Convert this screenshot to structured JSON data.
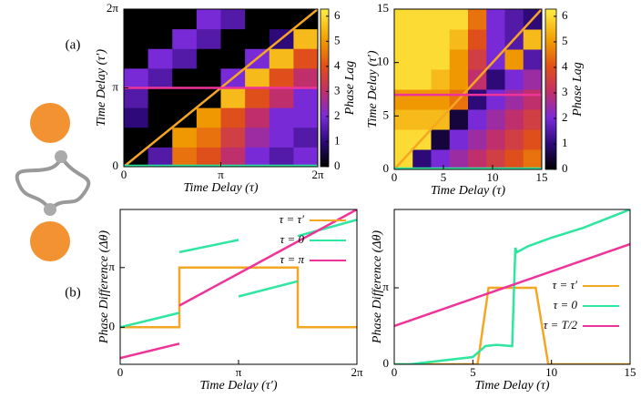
{
  "chart_data": [
    {
      "type": "heatmap",
      "panel_label": "(a)",
      "xlabel": "Time Delay (τ)",
      "ylabel": "Time Delay (τ′)",
      "xlim": [
        0,
        6.2832
      ],
      "ylim": [
        0,
        6.2832
      ],
      "xticks": [
        0,
        {
          "value": 3.1416,
          "label": "π"
        },
        {
          "value": 6.2832,
          "label": "2π"
        }
      ],
      "yticks": [
        0,
        {
          "value": 3.1416,
          "label": "π"
        },
        {
          "value": 6.2832,
          "label": "2π"
        }
      ],
      "z": [
        [
          0,
          1.5,
          4.5,
          4,
          3,
          2,
          1.5,
          2
        ],
        [
          0,
          0,
          5,
          4.5,
          3.5,
          2.5,
          2,
          1.5
        ],
        [
          1,
          0,
          0,
          5,
          4,
          3,
          2,
          2
        ],
        [
          1.5,
          0,
          0,
          0,
          5.5,
          4,
          3,
          2
        ],
        [
          2,
          1.5,
          0,
          0,
          2,
          5.5,
          4,
          3
        ],
        [
          0,
          2,
          1.5,
          0,
          0,
          2,
          5.5,
          4
        ],
        [
          0,
          0,
          2,
          1.5,
          0,
          0,
          1,
          5.5
        ],
        [
          0,
          0,
          0,
          2,
          1.5,
          0,
          0,
          0
        ]
      ],
      "colorbar": {
        "label": "Phase Lag",
        "lim": [
          0,
          6.2832
        ],
        "ticks": [
          0,
          1,
          2,
          3,
          4,
          5,
          6
        ]
      }
    },
    {
      "type": "heatmap",
      "xlabel": "Time Delay (τ)",
      "ylabel": "Time Delay (τ′)",
      "xlim": [
        0,
        15
      ],
      "ylim": [
        0,
        15
      ],
      "xticks": [
        0,
        5,
        10,
        15
      ],
      "yticks": [
        0,
        5,
        10,
        15
      ],
      "z": [
        [
          6,
          1,
          2,
          2.5,
          3,
          3.5,
          4,
          4.5
        ],
        [
          6,
          6,
          0.5,
          2,
          2.5,
          3,
          3.5,
          4
        ],
        [
          5.5,
          5.5,
          5.5,
          0.5,
          2,
          2.5,
          3,
          3.5
        ],
        [
          5,
          5,
          5,
          4.5,
          1,
          2,
          2.5,
          3
        ],
        [
          6,
          6,
          5.5,
          5,
          3,
          1,
          2,
          2.5
        ],
        [
          6,
          6,
          6,
          5,
          3.5,
          2,
          5,
          1.5
        ],
        [
          6,
          6,
          6,
          5.5,
          4,
          2,
          1.5,
          5.5
        ],
        [
          6,
          6,
          6,
          6,
          4.5,
          2,
          1.5,
          1
        ]
      ],
      "colorbar": {
        "label": "Phase Lag",
        "lim": [
          0,
          6.2832
        ],
        "ticks": [
          0,
          1,
          2,
          3,
          4,
          5,
          6
        ]
      }
    },
    {
      "type": "line",
      "panel_label": "(b)",
      "xlabel": "Time Delay (τ′)",
      "ylabel": "Phase Difference (Δθ)",
      "xlim": [
        0,
        6.2832
      ],
      "ylim": [
        -1.95,
        6.2
      ],
      "xticks": [
        0,
        {
          "value": 3.1416,
          "label": "π"
        },
        {
          "value": 6.2832,
          "label": "2π"
        }
      ],
      "yticks": [
        0,
        {
          "value": 3.1416,
          "label": "π"
        }
      ],
      "legend": "upper right",
      "series": [
        {
          "name": "τ = τ′",
          "color": "#f5a623",
          "x": [
            0,
            1.5708,
            1.5708,
            4.7124,
            4.7124,
            6.2832
          ],
          "values": [
            0,
            0,
            3.1416,
            3.1416,
            0,
            0
          ]
        },
        {
          "name": "τ = 0",
          "color": "#2ee6a0",
          "x": [
            0,
            1.5708,
            null,
            1.5708,
            3.1416,
            null,
            3.1416,
            4.7124,
            null,
            4.7124,
            6.2832
          ],
          "values": [
            0,
            0.76,
            null,
            3.95,
            4.6,
            null,
            1.62,
            2.42,
            null,
            4.8,
            5.66
          ]
        },
        {
          "name": "τ = π",
          "color": "#ee3399",
          "x": [
            0,
            1.5708,
            null,
            1.5708,
            6.2832
          ],
          "values": [
            -1.62,
            -0.86,
            null,
            1.14,
            6.2
          ]
        }
      ]
    },
    {
      "type": "line",
      "xlabel": "Time Delay (τ)",
      "ylabel": "Phase Difference (Δθ)",
      "xlim": [
        0,
        15
      ],
      "ylim": [
        0,
        6.36
      ],
      "xticks": [
        0,
        5,
        10,
        15
      ],
      "yticks": [
        0,
        {
          "value": 3.1416,
          "label": "π"
        }
      ],
      "legend": "lower right",
      "series": [
        {
          "name": "τ = τ′",
          "color": "#f5a623",
          "x": [
            0,
            5.3,
            6,
            9,
            9.8,
            15
          ],
          "values": [
            0,
            0,
            3.1416,
            3.1416,
            0,
            0
          ]
        },
        {
          "name": "τ = 0",
          "color": "#2ee6a0",
          "x": [
            0,
            1,
            3,
            5,
            5.8,
            6.5,
            7.5,
            7.7,
            7.8,
            8.5,
            10,
            12,
            15
          ],
          "values": [
            0,
            0,
            0.15,
            0.3,
            0.75,
            0.8,
            0.75,
            4.79,
            4.6,
            4.85,
            5.2,
            5.6,
            6.36
          ]
        },
        {
          "name": "τ = T/2",
          "color": "#ee3399",
          "x": [
            0,
            15
          ],
          "values": [
            1.57,
            4.94
          ]
        }
      ]
    }
  ]
}
